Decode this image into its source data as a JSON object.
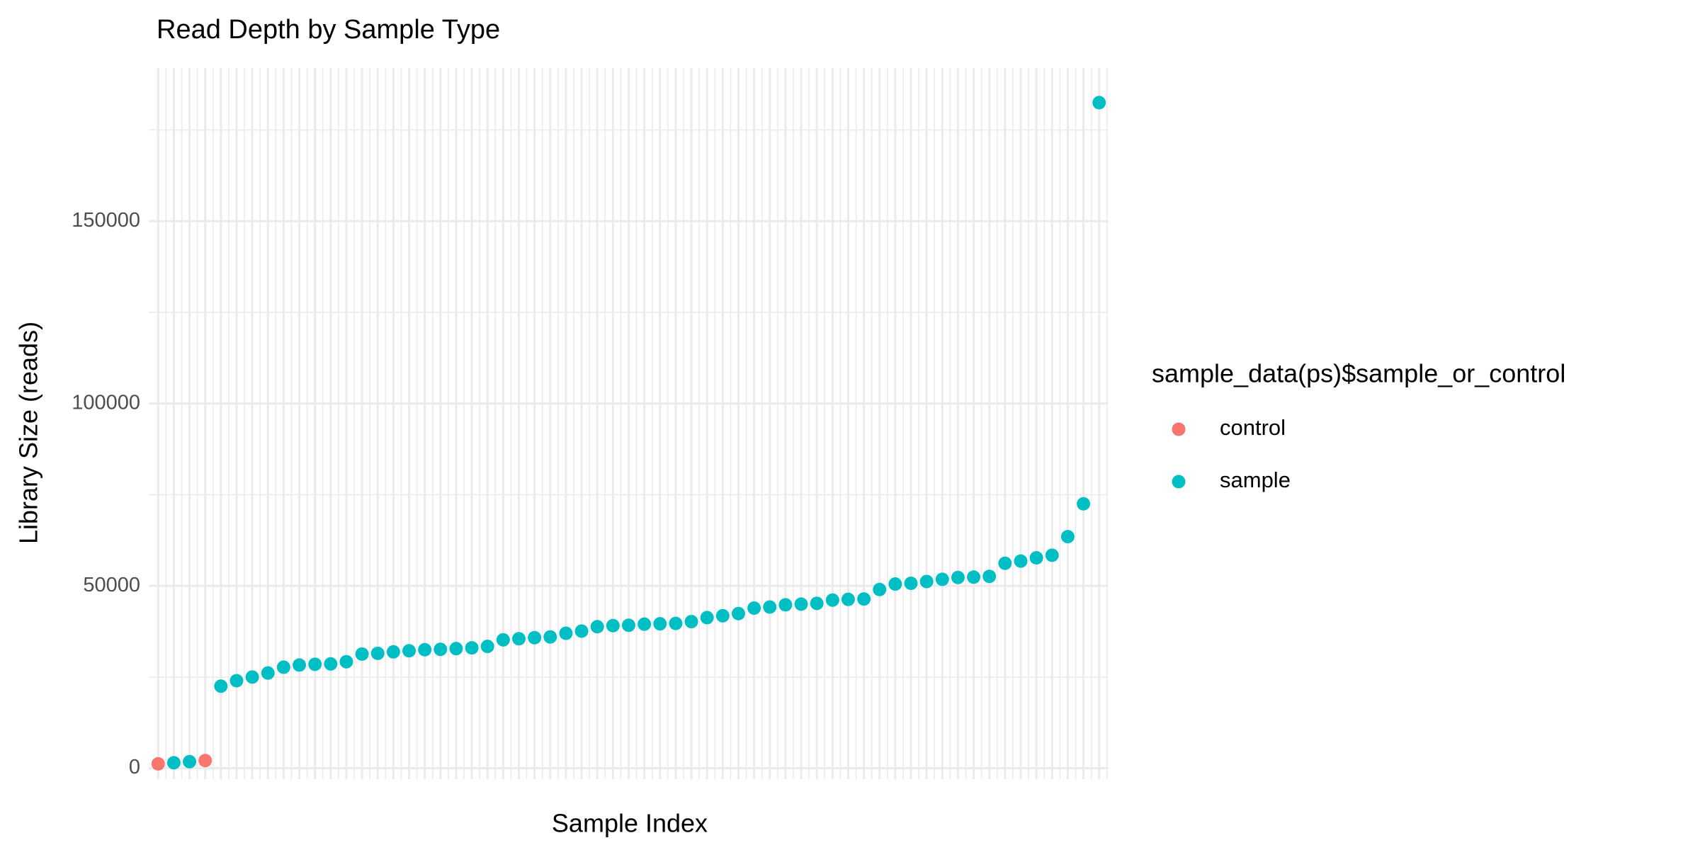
{
  "chart_data": {
    "type": "scatter",
    "title": "Read Depth by Sample Type",
    "x_label": "Sample Index",
    "y_label": "Library Size (reads)",
    "legend_title": "sample_data(ps)$sample_or_control",
    "legend_position": "right",
    "grid": true,
    "xlim": [
      0.4,
      61.6
    ],
    "ylim": [
      -3000,
      192000
    ],
    "yticks": [
      0,
      50000,
      100000,
      150000
    ],
    "minor_yticks": [
      25000,
      75000,
      125000,
      175000
    ],
    "series": [
      {
        "name": "control",
        "color": "#F8766D",
        "x": [
          1,
          4
        ],
        "values": [
          1200,
          2100
        ]
      },
      {
        "name": "sample",
        "color": "#00BFC4",
        "x": [
          2,
          3,
          5,
          6,
          7,
          8,
          9,
          10,
          11,
          12,
          13,
          14,
          15,
          16,
          17,
          18,
          19,
          20,
          21,
          22,
          23,
          24,
          25,
          26,
          27,
          28,
          29,
          30,
          31,
          32,
          33,
          34,
          35,
          36,
          37,
          38,
          39,
          40,
          41,
          42,
          43,
          44,
          45,
          46,
          47,
          48,
          49,
          50,
          51,
          52,
          53,
          54,
          55,
          56,
          57,
          58,
          59,
          60,
          61
        ],
        "values": [
          1500,
          1800,
          22500,
          24000,
          25000,
          26100,
          27700,
          28300,
          28500,
          28600,
          29200,
          31300,
          31500,
          31900,
          32200,
          32500,
          32600,
          32800,
          33000,
          33400,
          35200,
          35500,
          35800,
          36000,
          37000,
          37600,
          38800,
          39100,
          39200,
          39500,
          39600,
          39700,
          40200,
          41300,
          41800,
          42400,
          43900,
          44200,
          44800,
          45000,
          45200,
          46100,
          46300,
          46400,
          49000,
          50500,
          50700,
          51200,
          51800,
          52300,
          52400,
          52600,
          56200,
          56800,
          57700,
          58400,
          63500,
          72500,
          182500
        ]
      }
    ]
  }
}
